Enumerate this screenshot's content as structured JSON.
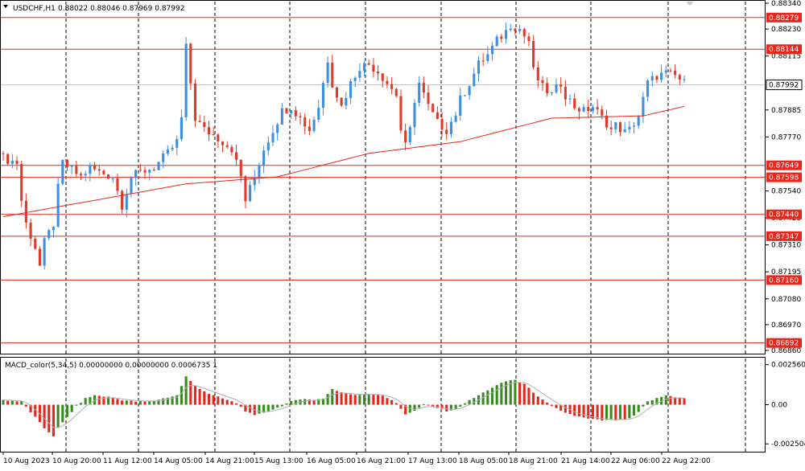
{
  "header": {
    "symbol": "USDCHF,H1",
    "ohlc": "0.88022 0.88046 0.87969 0.87992"
  },
  "macd_header": "MACD_color(5,34,5) 0.00000000 0.00000000 0.0006735 1",
  "colors": {
    "bull": "#3d8fe0",
    "bear": "#e03a2a",
    "level": "#e8261c",
    "ma": "#e8261c",
    "macd_up": "#3a8a22",
    "macd_down": "#e8261c",
    "signal": "#b0b0b0",
    "grid": "#000000",
    "bid_line": "#c0c0c0"
  },
  "chart_data": [
    {
      "type": "candlestick",
      "title": "USDCHF,H1",
      "ylim": [
        0.8686,
        0.8834
      ],
      "y_ticks": [
        "0.88340",
        "0.88230",
        "0.88115",
        "0.87885",
        "0.87770",
        "0.87540",
        "0.87425",
        "0.87310",
        "0.87195",
        "0.87080",
        "0.86970",
        "0.86860"
      ],
      "levels": [
        {
          "value": 0.88279,
          "label": "0.88279"
        },
        {
          "value": 0.88144,
          "label": "0.88144"
        },
        {
          "value": 0.87649,
          "label": "0.87649"
        },
        {
          "value": 0.87598,
          "label": "0.87598"
        },
        {
          "value": 0.8744,
          "label": "0.87440"
        },
        {
          "value": 0.87347,
          "label": "0.87347"
        },
        {
          "value": 0.8716,
          "label": "0.87160"
        },
        {
          "value": 0.86892,
          "label": "0.86892"
        }
      ],
      "current_price": {
        "value": 0.87992,
        "label": "0.87992"
      },
      "x_labels": [
        "10 Aug 2023",
        "10 Aug 20:00",
        "11 Aug 12:00",
        "14 Aug 05:00",
        "14 Aug 21:00",
        "15 Aug 13:00",
        "16 Aug 05:00",
        "16 Aug 21:00",
        "17 Aug 13:00",
        "18 Aug 05:00",
        "18 Aug 21:00",
        "21 Aug 14:00",
        "22 Aug 06:00",
        "22 Aug 22:00"
      ],
      "close_path": [
        [
          0,
          0.8768
        ],
        [
          3,
          0.8766
        ],
        [
          4,
          0.875
        ],
        [
          5,
          0.874
        ],
        [
          7,
          0.873
        ],
        [
          8,
          0.8722
        ],
        [
          9,
          0.8732
        ],
        [
          11,
          0.874
        ],
        [
          12,
          0.8755
        ],
        [
          13,
          0.8766
        ],
        [
          15,
          0.8763
        ],
        [
          17,
          0.876
        ],
        [
          19,
          0.8764
        ],
        [
          21,
          0.8762
        ],
        [
          24,
          0.876
        ],
        [
          26,
          0.8748
        ],
        [
          28,
          0.876
        ],
        [
          30,
          0.8762
        ],
        [
          33,
          0.8764
        ],
        [
          36,
          0.877
        ],
        [
          38,
          0.8775
        ],
        [
          39,
          0.8785
        ],
        [
          40,
          0.8815
        ],
        [
          41,
          0.88
        ],
        [
          42,
          0.8785
        ],
        [
          44,
          0.878
        ],
        [
          46,
          0.8778
        ],
        [
          48,
          0.8775
        ],
        [
          50,
          0.8772
        ],
        [
          52,
          0.876
        ],
        [
          53,
          0.875
        ],
        [
          54,
          0.8755
        ],
        [
          55,
          0.876
        ],
        [
          57,
          0.8772
        ],
        [
          59,
          0.878
        ],
        [
          61,
          0.8788
        ],
        [
          63,
          0.879
        ],
        [
          65,
          0.8785
        ],
        [
          67,
          0.878
        ],
        [
          69,
          0.879
        ],
        [
          70,
          0.88
        ],
        [
          71,
          0.881
        ],
        [
          72,
          0.88
        ],
        [
          74,
          0.879
        ],
        [
          76,
          0.88
        ],
        [
          78,
          0.8807
        ],
        [
          80,
          0.8808
        ],
        [
          82,
          0.8805
        ],
        [
          84,
          0.88
        ],
        [
          86,
          0.8795
        ],
        [
          87,
          0.878
        ],
        [
          88,
          0.8773
        ],
        [
          89,
          0.878
        ],
        [
          90,
          0.8793
        ],
        [
          91,
          0.88
        ],
        [
          93,
          0.879
        ],
        [
          95,
          0.8783
        ],
        [
          97,
          0.878
        ],
        [
          99,
          0.8787
        ],
        [
          100,
          0.8793
        ],
        [
          102,
          0.88
        ],
        [
          104,
          0.8808
        ],
        [
          106,
          0.8812
        ],
        [
          108,
          0.8818
        ],
        [
          110,
          0.8822
        ],
        [
          111,
          0.8825
        ],
        [
          113,
          0.8823
        ],
        [
          114,
          0.882
        ],
        [
          115,
          0.8818
        ],
        [
          116,
          0.8805
        ],
        [
          118,
          0.8798
        ],
        [
          120,
          0.8795
        ],
        [
          122,
          0.88
        ],
        [
          123,
          0.8795
        ],
        [
          125,
          0.879
        ],
        [
          127,
          0.8788
        ],
        [
          129,
          0.879
        ],
        [
          131,
          0.8785
        ],
        [
          132,
          0.8783
        ],
        [
          133,
          0.878
        ],
        [
          134,
          0.8782
        ],
        [
          136,
          0.8779
        ],
        [
          137,
          0.878
        ],
        [
          139,
          0.8786
        ],
        [
          141,
          0.88
        ],
        [
          143,
          0.8803
        ],
        [
          145,
          0.8804
        ],
        [
          147,
          0.8803
        ],
        [
          149,
          0.88
        ]
      ],
      "ma_path": [
        [
          0,
          0.8743
        ],
        [
          20,
          0.875
        ],
        [
          40,
          0.8757
        ],
        [
          60,
          0.876
        ],
        [
          80,
          0.877
        ],
        [
          100,
          0.8775
        ],
        [
          120,
          0.8785
        ],
        [
          140,
          0.8786
        ],
        [
          149,
          0.879
        ]
      ],
      "bar_count": 150
    },
    {
      "type": "histogram",
      "title": "MACD_color(5,34,5)",
      "ylim": [
        -0.0028,
        0.0028
      ],
      "y_ticks": [
        "0.0025606",
        "0.00",
        "-0.0025042"
      ],
      "hist_path": [
        [
          0,
          0.0003
        ],
        [
          4,
          0.0002
        ],
        [
          7,
          -0.0008
        ],
        [
          9,
          -0.0015
        ],
        [
          11,
          -0.002
        ],
        [
          12,
          -0.0015
        ],
        [
          14,
          -0.0008
        ],
        [
          16,
          -0.0001
        ],
        [
          18,
          0.0004
        ],
        [
          20,
          0.0006
        ],
        [
          23,
          0.0005
        ],
        [
          26,
          0.0003
        ],
        [
          29,
          0.0002
        ],
        [
          32,
          0.0002
        ],
        [
          35,
          0.0004
        ],
        [
          38,
          0.0006
        ],
        [
          40,
          0.0018
        ],
        [
          42,
          0.0012
        ],
        [
          45,
          0.0007
        ],
        [
          48,
          0.0004
        ],
        [
          51,
          0.0001
        ],
        [
          53,
          -0.0004
        ],
        [
          55,
          -0.0007
        ],
        [
          57,
          -0.0005
        ],
        [
          60,
          -0.0002
        ],
        [
          63,
          0.0002
        ],
        [
          66,
          0.0004
        ],
        [
          68,
          0.0003
        ],
        [
          70,
          0.0004
        ],
        [
          72,
          0.001
        ],
        [
          74,
          0.0008
        ],
        [
          77,
          0.0006
        ],
        [
          80,
          0.0007
        ],
        [
          83,
          0.0006
        ],
        [
          86,
          0.0001
        ],
        [
          88,
          -0.0006
        ],
        [
          90,
          -0.0004
        ],
        [
          92,
          0.0
        ],
        [
          95,
          -0.0002
        ],
        [
          97,
          -0.0004
        ],
        [
          99,
          -0.0003
        ],
        [
          101,
          0.0001
        ],
        [
          104,
          0.0006
        ],
        [
          107,
          0.0011
        ],
        [
          110,
          0.0015
        ],
        [
          112,
          0.0016
        ],
        [
          114,
          0.0013
        ],
        [
          116,
          0.0008
        ],
        [
          118,
          0.0003
        ],
        [
          120,
          -0.0001
        ],
        [
          122,
          -0.0004
        ],
        [
          125,
          -0.0007
        ],
        [
          128,
          -0.0009
        ],
        [
          131,
          -0.001
        ],
        [
          134,
          -0.001
        ],
        [
          137,
          -0.0009
        ],
        [
          139,
          -0.0005
        ],
        [
          141,
          0.0002
        ],
        [
          143,
          0.0004
        ],
        [
          145,
          0.0006
        ],
        [
          147,
          0.0005
        ],
        [
          149,
          0.0004
        ]
      ]
    }
  ]
}
